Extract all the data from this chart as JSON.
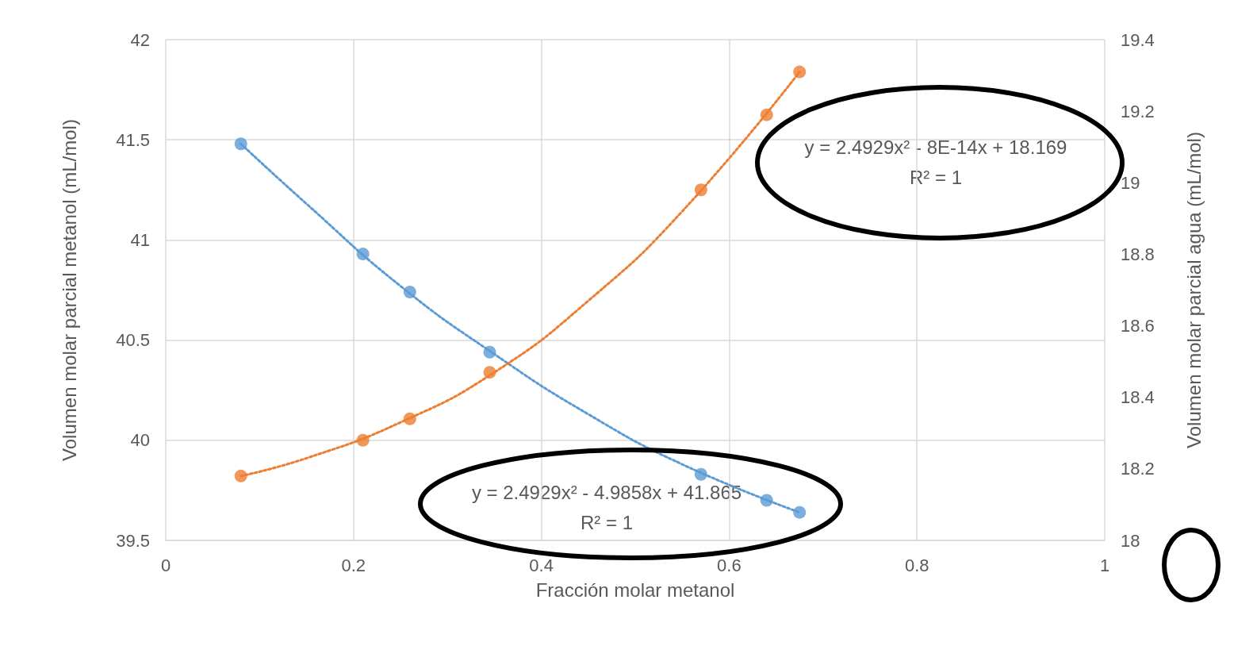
{
  "chart_data": {
    "type": "scatter",
    "xlabel": "Fracción molar metanol",
    "ylabel": "Volumen molar parcial metanol (mL/mol)",
    "y2label": "Volumen molar parcial agua (mL/mol)",
    "annotations": [
      "y = 2.4929x² - 8E-14x + 18.169\nR² = 1",
      "y = 2.4929x² - 4.9858x + 41.865\nR² = 1"
    ],
    "x": [
      0.08,
      0.21,
      0.26,
      0.345,
      0.57,
      0.64,
      0.675
    ],
    "series": [
      {
        "color": "#5b9bd5",
        "values": [
          41.48,
          40.93,
          40.74,
          40.44,
          39.83,
          39.7,
          39.64
        ]
      },
      {
        "color": "#ed7d31",
        "axis": "y2",
        "values": [
          18.18,
          18.28,
          18.34,
          18.47,
          18.98,
          19.19,
          19.31
        ]
      },
      {
        "type": "line",
        "line_style": "dotted",
        "marker": "none",
        "color": "#5b9bd5",
        "x": [
          0.08,
          0.15,
          0.25,
          0.35,
          0.45,
          0.55,
          0.675
        ],
        "values": [
          41.48,
          41.18,
          40.77,
          40.43,
          40.13,
          39.88,
          39.64
        ]
      },
      {
        "type": "line",
        "line_style": "dotted",
        "marker": "none",
        "color": "#ed7d31",
        "axis": "y2",
        "x": [
          0.08,
          0.15,
          0.25,
          0.35,
          0.45,
          0.55,
          0.675
        ],
        "values": [
          18.18,
          18.23,
          18.33,
          18.47,
          18.67,
          18.92,
          19.31
        ]
      }
    ],
    "xlim": [
      0,
      1
    ],
    "xticks": [
      0,
      0.2,
      0.4,
      0.6,
      0.8,
      1
    ],
    "ylim": [
      39.5,
      42
    ],
    "yticks": [
      39.5,
      40,
      40.5,
      41,
      41.5,
      42
    ],
    "y2lim": [
      18,
      19.4
    ],
    "y2ticks": [
      18,
      18.2,
      18.4,
      18.6,
      18.8,
      19,
      19.2,
      19.4
    ],
    "grid": true,
    "marker": "circle"
  }
}
